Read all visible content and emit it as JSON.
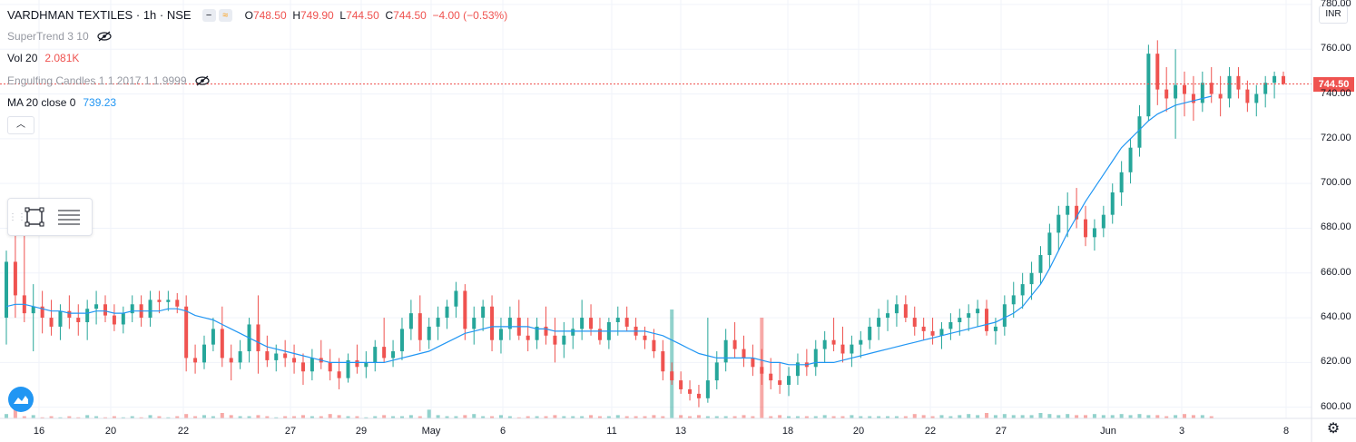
{
  "symbol": {
    "name": "VARDHMAN TEXTILES",
    "interval": "1h",
    "exchange": "NSE",
    "sep": "·",
    "pill_icons": [
      "minus-icon",
      "wave-icon"
    ]
  },
  "ohlc": {
    "o_label": "O",
    "o": "748.50",
    "h_label": "H",
    "h": "749.90",
    "l_label": "L",
    "l": "744.50",
    "c_label": "C",
    "c": "744.50",
    "change": "−4.00 (−0.53%)"
  },
  "indicators": [
    {
      "name": "SuperTrend 3 10",
      "value": "",
      "hidden": true
    },
    {
      "name": "Vol 20",
      "value": "2.081K",
      "hidden": false,
      "value_color": "#ef5350"
    },
    {
      "name": "Engulfing Candles 1 1 2017 1 1.9999",
      "value": "",
      "hidden": true
    },
    {
      "name": "MA 20 close 0",
      "value": "739.23",
      "hidden": false,
      "value_color": "#2196f3"
    }
  ],
  "price_axis": {
    "currency": "INR",
    "ticks": [
      "780.00",
      "760.00",
      "740.00",
      "720.00",
      "700.00",
      "680.00",
      "660.00",
      "640.00",
      "620.00",
      "600.00"
    ],
    "last_price": "744.50"
  },
  "time_axis": {
    "ticks": [
      "16",
      "20",
      "22",
      "27",
      "29",
      "May",
      "6",
      "11",
      "13",
      "18",
      "20",
      "22",
      "27",
      "Jun",
      "3",
      "8"
    ]
  },
  "colors": {
    "up": "#26a69a",
    "down": "#ef5350",
    "ma": "#2196f3",
    "grid": "#f0f3fa"
  },
  "chart_data": {
    "type": "candlestick",
    "series": [
      {
        "name": "VARDHMAN TEXTILES",
        "kind": "candles"
      },
      {
        "name": "MA 20 close 0",
        "kind": "line"
      },
      {
        "name": "Vol 20",
        "kind": "volume"
      }
    ],
    "ylim": [
      595,
      782
    ],
    "last_price": 744.5,
    "x_ticks": [
      "16",
      "20",
      "22",
      "27",
      "29",
      "May",
      "6",
      "11",
      "13",
      "18",
      "20",
      "22",
      "27",
      "Jun",
      "3",
      "8"
    ],
    "candles_ohlc": [
      [
        640,
        670,
        628,
        665
      ],
      [
        665,
        693,
        640,
        650
      ],
      [
        650,
        690,
        638,
        642
      ],
      [
        642,
        655,
        625,
        645
      ],
      [
        645,
        652,
        633,
        640
      ],
      [
        640,
        648,
        632,
        636
      ],
      [
        636,
        646,
        630,
        643
      ],
      [
        643,
        650,
        635,
        640
      ],
      [
        640,
        646,
        632,
        638
      ],
      [
        638,
        648,
        630,
        644
      ],
      [
        644,
        652,
        637,
        646
      ],
      [
        646,
        650,
        638,
        641
      ],
      [
        641,
        646,
        634,
        637
      ],
      [
        637,
        645,
        633,
        642
      ],
      [
        642,
        650,
        638,
        646
      ],
      [
        646,
        650,
        636,
        640
      ],
      [
        640,
        652,
        636,
        648
      ],
      [
        648,
        652,
        642,
        647
      ],
      [
        647,
        652,
        643,
        648
      ],
      [
        648,
        651,
        642,
        645
      ],
      [
        645,
        650,
        616,
        622
      ],
      [
        622,
        628,
        615,
        620
      ],
      [
        620,
        632,
        617,
        628
      ],
      [
        628,
        640,
        625,
        635
      ],
      [
        635,
        645,
        618,
        622
      ],
      [
        622,
        628,
        612,
        620
      ],
      [
        620,
        630,
        617,
        625
      ],
      [
        625,
        640,
        620,
        637
      ],
      [
        637,
        650,
        615,
        625
      ],
      [
        625,
        632,
        618,
        621
      ],
      [
        621,
        628,
        616,
        624
      ],
      [
        624,
        630,
        618,
        622
      ],
      [
        622,
        628,
        615,
        620
      ],
      [
        620,
        624,
        610,
        616
      ],
      [
        616,
        626,
        612,
        622
      ],
      [
        622,
        630,
        617,
        620
      ],
      [
        620,
        626,
        612,
        616
      ],
      [
        616,
        622,
        608,
        613
      ],
      [
        613,
        624,
        611,
        621
      ],
      [
        621,
        628,
        615,
        618
      ],
      [
        618,
        625,
        613,
        620
      ],
      [
        620,
        630,
        616,
        627
      ],
      [
        627,
        640,
        620,
        622
      ],
      [
        622,
        630,
        618,
        625
      ],
      [
        625,
        640,
        621,
        635
      ],
      [
        635,
        648,
        630,
        642
      ],
      [
        642,
        650,
        625,
        630
      ],
      [
        630,
        640,
        626,
        636
      ],
      [
        636,
        645,
        630,
        640
      ],
      [
        640,
        648,
        635,
        645
      ],
      [
        645,
        656,
        640,
        652
      ],
      [
        652,
        655,
        630,
        635
      ],
      [
        635,
        645,
        628,
        640
      ],
      [
        640,
        648,
        634,
        645
      ],
      [
        645,
        650,
        625,
        630
      ],
      [
        630,
        640,
        624,
        635
      ],
      [
        635,
        645,
        630,
        640
      ],
      [
        640,
        648,
        630,
        632
      ],
      [
        632,
        640,
        625,
        630
      ],
      [
        630,
        640,
        626,
        636
      ],
      [
        636,
        645,
        628,
        632
      ],
      [
        632,
        640,
        620,
        628
      ],
      [
        628,
        638,
        622,
        632
      ],
      [
        632,
        640,
        626,
        635
      ],
      [
        635,
        648,
        630,
        640
      ],
      [
        640,
        646,
        632,
        635
      ],
      [
        635,
        640,
        628,
        630
      ],
      [
        630,
        640,
        626,
        638
      ],
      [
        638,
        645,
        632,
        640
      ],
      [
        640,
        645,
        634,
        636
      ],
      [
        636,
        640,
        630,
        632
      ],
      [
        632,
        636,
        626,
        630
      ],
      [
        630,
        635,
        622,
        625
      ],
      [
        625,
        630,
        612,
        616
      ],
      [
        616,
        620,
        610,
        612
      ],
      [
        612,
        616,
        606,
        608
      ],
      [
        608,
        612,
        603,
        606
      ],
      [
        606,
        610,
        600,
        604
      ],
      [
        604,
        640,
        602,
        612
      ],
      [
        612,
        625,
        608,
        620
      ],
      [
        620,
        635,
        616,
        630
      ],
      [
        630,
        638,
        622,
        626
      ],
      [
        626,
        632,
        618,
        622
      ],
      [
        622,
        628,
        614,
        618
      ],
      [
        618,
        626,
        610,
        615
      ],
      [
        615,
        622,
        608,
        612
      ],
      [
        612,
        620,
        606,
        610
      ],
      [
        610,
        618,
        605,
        614
      ],
      [
        614,
        624,
        610,
        620
      ],
      [
        620,
        626,
        614,
        618
      ],
      [
        618,
        630,
        614,
        626
      ],
      [
        626,
        634,
        620,
        630
      ],
      [
        630,
        640,
        625,
        628
      ],
      [
        628,
        636,
        620,
        624
      ],
      [
        624,
        632,
        618,
        628
      ],
      [
        628,
        634,
        622,
        630
      ],
      [
        630,
        640,
        626,
        636
      ],
      [
        636,
        644,
        630,
        640
      ],
      [
        640,
        648,
        634,
        642
      ],
      [
        642,
        650,
        636,
        646
      ],
      [
        646,
        650,
        638,
        640
      ],
      [
        640,
        645,
        632,
        636
      ],
      [
        636,
        640,
        630,
        634
      ],
      [
        634,
        640,
        628,
        632
      ],
      [
        632,
        638,
        626,
        635
      ],
      [
        635,
        642,
        630,
        638
      ],
      [
        638,
        644,
        632,
        640
      ],
      [
        640,
        646,
        634,
        642
      ],
      [
        642,
        648,
        636,
        644
      ],
      [
        644,
        648,
        632,
        634
      ],
      [
        634,
        640,
        628,
        636
      ],
      [
        636,
        650,
        632,
        646
      ],
      [
        646,
        656,
        640,
        650
      ],
      [
        650,
        660,
        644,
        655
      ],
      [
        655,
        665,
        648,
        660
      ],
      [
        660,
        672,
        655,
        668
      ],
      [
        668,
        682,
        662,
        678
      ],
      [
        678,
        690,
        670,
        686
      ],
      [
        686,
        696,
        676,
        690
      ],
      [
        690,
        698,
        680,
        684
      ],
      [
        684,
        690,
        672,
        676
      ],
      [
        676,
        684,
        670,
        680
      ],
      [
        680,
        690,
        676,
        686
      ],
      [
        686,
        700,
        682,
        696
      ],
      [
        696,
        710,
        690,
        705
      ],
      [
        705,
        720,
        700,
        716
      ],
      [
        716,
        735,
        712,
        730
      ],
      [
        730,
        762,
        728,
        758
      ],
      [
        758,
        764,
        735,
        742
      ],
      [
        742,
        752,
        732,
        738
      ],
      [
        738,
        760,
        720,
        744
      ],
      [
        744,
        750,
        730,
        740
      ],
      [
        740,
        748,
        728,
        736
      ],
      [
        736,
        750,
        732,
        745
      ],
      [
        745,
        752,
        736,
        740
      ],
      [
        740,
        748,
        730,
        738
      ],
      [
        738,
        752,
        734,
        748
      ],
      [
        748,
        752,
        738,
        742
      ],
      [
        742,
        746,
        732,
        736
      ],
      [
        736,
        744,
        730,
        740
      ],
      [
        740,
        748,
        734,
        745
      ],
      [
        745,
        750,
        738,
        748
      ],
      [
        748,
        750,
        744,
        744.5
      ]
    ],
    "ma_values": [
      645,
      646,
      646,
      645,
      644,
      643,
      643,
      642,
      642,
      642,
      643,
      643,
      642,
      642,
      643,
      643,
      643,
      643,
      644,
      644,
      643,
      641,
      640,
      639,
      637,
      635,
      633,
      631,
      629,
      627,
      626,
      625,
      624,
      623,
      622,
      621,
      620,
      620,
      620,
      620,
      620,
      620,
      620,
      621,
      622,
      623,
      624,
      625,
      627,
      629,
      631,
      633,
      634,
      635,
      636,
      636,
      636,
      636,
      636,
      635,
      635,
      634,
      634,
      634,
      634,
      634,
      634,
      634,
      634,
      634,
      634,
      634,
      633,
      632,
      630,
      628,
      626,
      624,
      623,
      622,
      622,
      622,
      622,
      622,
      621,
      620,
      620,
      619,
      619,
      619,
      620,
      620,
      620,
      621,
      622,
      623,
      624,
      625,
      626,
      627,
      628,
      629,
      630,
      631,
      632,
      633,
      634,
      635,
      636,
      637,
      638,
      640,
      642,
      645,
      650,
      655,
      662,
      670,
      678,
      685,
      692,
      698,
      704,
      710,
      716,
      720,
      724,
      728,
      731,
      733,
      735,
      736,
      737,
      738,
      739
    ],
    "volume": [
      4,
      9,
      2,
      3,
      1,
      2,
      1,
      2,
      1,
      3,
      2,
      1,
      2,
      1,
      2,
      1,
      3,
      2,
      1,
      2,
      4,
      2,
      3,
      2,
      5,
      3,
      2,
      2,
      3,
      2,
      1,
      2,
      2,
      3,
      2,
      2,
      4,
      3,
      2,
      2,
      1,
      2,
      3,
      2,
      2,
      3,
      2,
      8,
      3,
      2,
      2,
      3,
      4,
      2,
      2,
      3,
      2,
      1,
      2,
      2,
      2,
      3,
      2,
      2,
      2,
      3,
      2,
      2,
      3,
      2,
      2,
      2,
      3,
      2,
      5,
      3,
      2,
      3,
      2,
      2,
      2,
      2,
      3,
      2,
      2,
      2,
      3,
      2,
      2,
      2,
      2,
      3,
      2,
      2,
      3,
      2,
      2,
      2,
      2,
      2,
      2,
      4,
      3,
      2,
      3,
      2,
      3,
      4,
      3,
      5,
      3,
      4,
      3,
      3,
      3,
      5,
      4,
      3,
      4,
      3,
      3,
      4,
      3,
      3,
      4,
      3,
      4,
      3,
      3,
      2,
      3,
      4,
      3,
      3,
      2
    ],
    "volume_spikes": [
      {
        "index": 74,
        "value": 40,
        "direction": "up"
      },
      {
        "index": 84,
        "value": 37,
        "direction": "down"
      }
    ]
  }
}
